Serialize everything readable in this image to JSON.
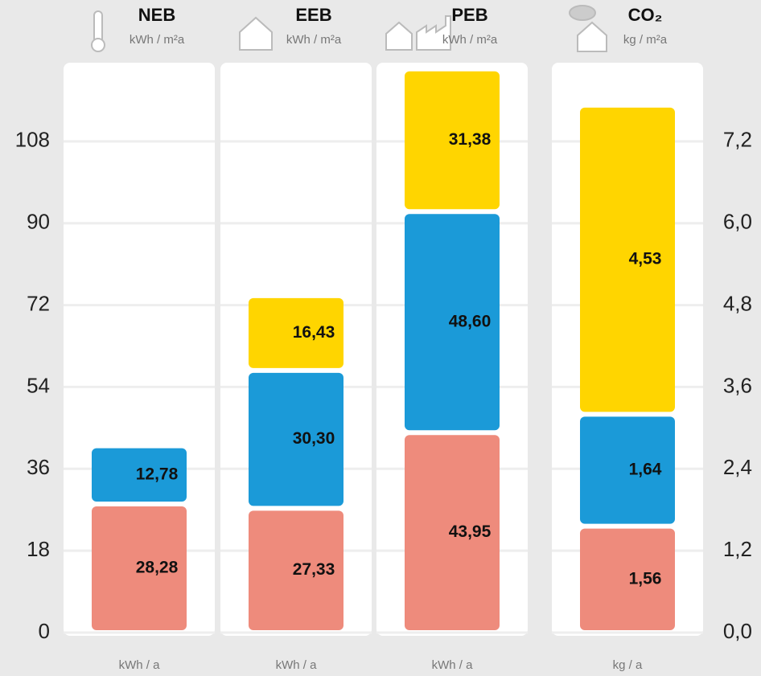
{
  "chart_data": {
    "type": "bar",
    "stacked": true,
    "categories": [
      "NEB",
      "EEB",
      "PEB",
      "CO₂"
    ],
    "units": [
      "kWh / m²a",
      "kWh / m²a",
      "kWh / m²a",
      "kg / m²a"
    ],
    "bottom_labels": [
      "kWh / a",
      "kWh / a",
      "kWh / a",
      "kg / a"
    ],
    "series": [
      {
        "color": "#ee8b7c",
        "values": [
          28.28,
          27.33,
          43.95,
          null
        ],
        "value_labels": [
          "28,28",
          "27,33",
          "43,95",
          null
        ]
      },
      {
        "color": "#1b9ad8",
        "values": [
          12.78,
          30.3,
          48.6,
          null
        ],
        "value_labels": [
          "12,78",
          "30,30",
          "48,60",
          null
        ]
      },
      {
        "color": "#ffd500",
        "values": [
          null,
          16.43,
          31.38,
          null
        ],
        "value_labels": [
          null,
          "16,43",
          "31,38",
          null
        ]
      },
      {
        "color": "#ee8b7c",
        "axis": "y2",
        "values": [
          null,
          null,
          null,
          1.56
        ],
        "value_labels": [
          null,
          null,
          null,
          "1,56"
        ]
      },
      {
        "color": "#1b9ad8",
        "axis": "y2",
        "values": [
          null,
          null,
          null,
          1.64
        ],
        "value_labels": [
          null,
          null,
          null,
          "1,64"
        ]
      },
      {
        "color": "#ffd500",
        "axis": "y2",
        "values": [
          null,
          null,
          null,
          4.53
        ],
        "value_labels": [
          null,
          null,
          null,
          "4,53"
        ]
      }
    ],
    "ylim": [
      0,
      126
    ],
    "yticks": [
      0,
      18,
      36,
      54,
      72,
      90,
      108
    ],
    "y2lim": [
      0,
      8.4
    ],
    "y2ticks": [
      {
        "value": 0,
        "label": "0,0"
      },
      {
        "value": 1.2,
        "label": "1,2"
      },
      {
        "value": 2.4,
        "label": "2,4"
      },
      {
        "value": 3.6,
        "label": "3,6"
      },
      {
        "value": 4.8,
        "label": "4,8"
      },
      {
        "value": 6.0,
        "label": "6,0"
      },
      {
        "value": 7.2,
        "label": "7,2"
      }
    ],
    "grid": true
  }
}
